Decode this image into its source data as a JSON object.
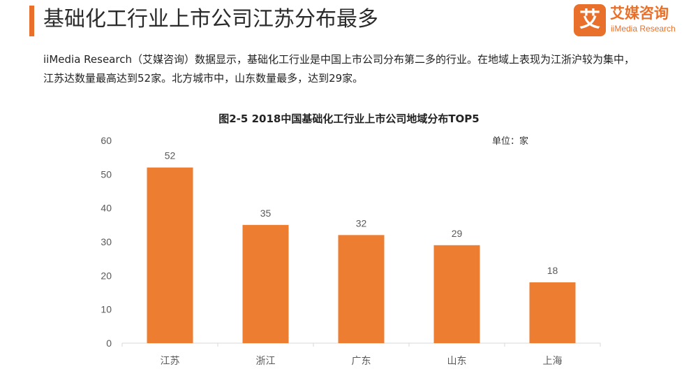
{
  "header": {
    "title": "基础化工行业上市公司江苏分布最多",
    "accent_color": "#e8702a"
  },
  "logo": {
    "mark": "艾",
    "name_cn": "艾媒咨询",
    "name_en": "iiMedia Research"
  },
  "summary": "iiMedia Research（艾媒咨询）数据显示，基础化工行业是中国上市公司分布第二多的行业。在地域上表现为江浙沪较为集中，江苏达数量最高达到52家。北方城市中，山东数量最多，达到29家。",
  "chart_data": {
    "type": "bar",
    "title": "图2-5 2018中国基础化工行业上市公司地域分布TOP5",
    "unit": "单位：家",
    "categories": [
      "江苏",
      "浙江",
      "广东",
      "山东",
      "上海"
    ],
    "values": [
      52,
      35,
      32,
      29,
      18
    ],
    "ylim": [
      0,
      60
    ],
    "yticks": [
      0,
      10,
      20,
      30,
      40,
      50,
      60
    ],
    "bar_color": "#ed7d31",
    "data_labels": true,
    "grid": false,
    "legend": "none"
  }
}
